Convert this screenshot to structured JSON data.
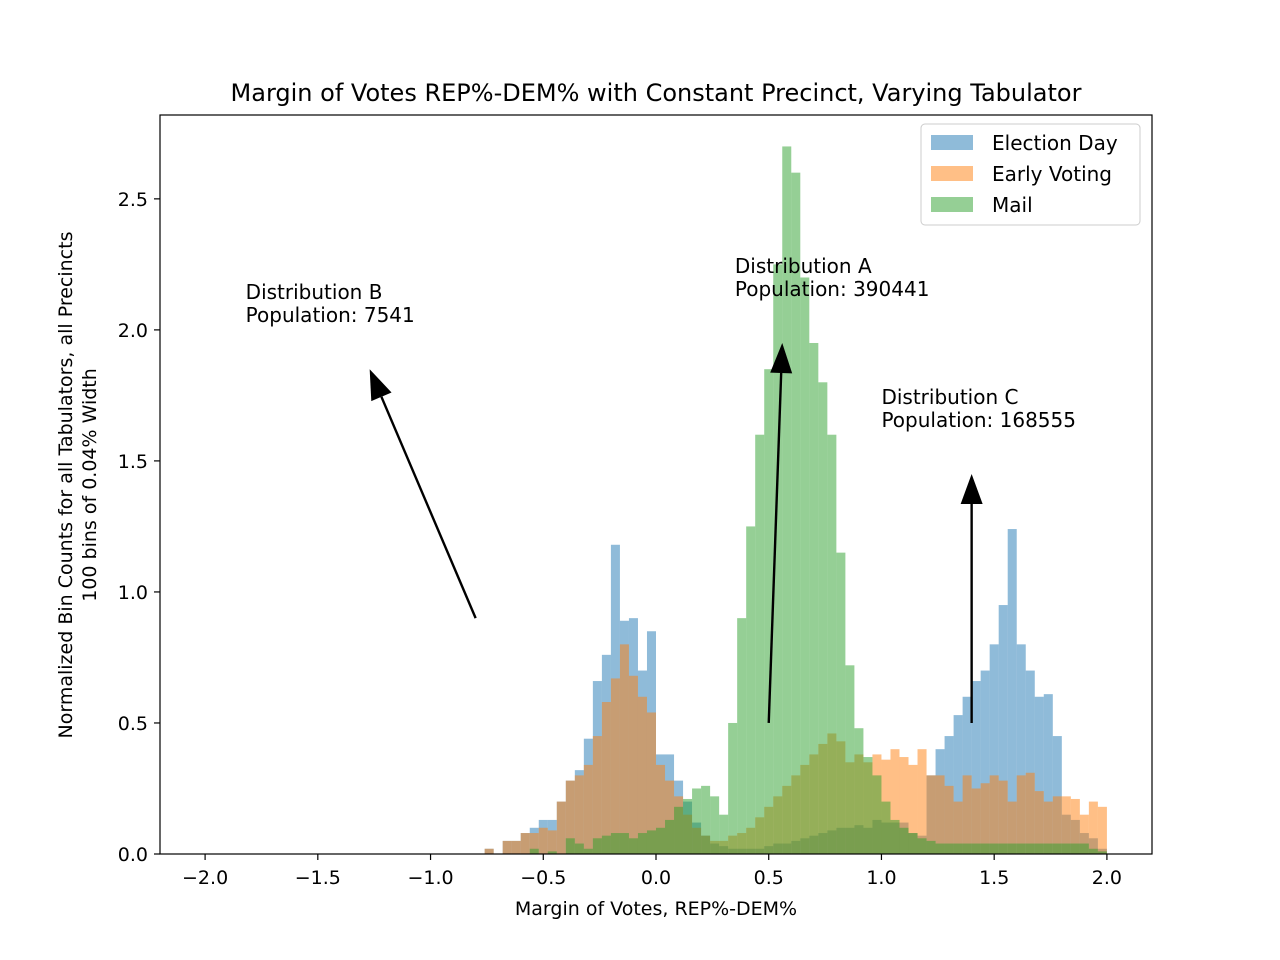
{
  "chart_data": {
    "type": "histogram",
    "title": "Margin of Votes REP%-DEM% with Constant Precinct, Varying Tabulator",
    "xlabel": "Margin of Votes, REP%-DEM%",
    "ylabel_lines": [
      "Normalized Bin Counts for all Tabulators, all Precincts",
      "100 bins of 0.04% Width"
    ],
    "xlim": [
      -2.2,
      2.2
    ],
    "ylim": [
      0,
      2.82
    ],
    "x_ticks": [
      -2.0,
      -1.5,
      -1.0,
      -0.5,
      0.0,
      0.5,
      1.0,
      1.5,
      2.0
    ],
    "x_tick_labels": [
      "−2.0",
      "−1.5",
      "−1.0",
      "−0.5",
      "0.0",
      "0.5",
      "1.0",
      "1.5",
      "2.0"
    ],
    "y_ticks": [
      0.0,
      0.5,
      1.0,
      1.5,
      2.0,
      2.5
    ],
    "y_tick_labels": [
      "0.0",
      "0.5",
      "1.0",
      "1.5",
      "2.0",
      "2.5"
    ],
    "bins": {
      "start": -2.0,
      "width": 0.04,
      "count": 100
    },
    "legend_position": "top-right",
    "series": [
      {
        "name": "Election Day",
        "color": "#1f77b4",
        "alpha": 0.5,
        "values": [
          0,
          0,
          0,
          0,
          0,
          0,
          0,
          0,
          0,
          0,
          0,
          0,
          0,
          0,
          0,
          0,
          0,
          0,
          0,
          0,
          0,
          0,
          0,
          0,
          0,
          0,
          0,
          0,
          0,
          0,
          0,
          0.02,
          0,
          0.05,
          0.05,
          0.08,
          0.1,
          0.13,
          0.13,
          0.2,
          0.28,
          0.32,
          0.44,
          0.66,
          0.76,
          1.18,
          0.89,
          0.9,
          0.7,
          0.85,
          0.38,
          0.38,
          0.28,
          0.2,
          0.12,
          0.07,
          0.04,
          0.03,
          0.02,
          0.02,
          0.02,
          0.02,
          0.03,
          0.04,
          0.04,
          0.05,
          0.06,
          0.07,
          0.08,
          0.09,
          0.1,
          0.1,
          0.11,
          0.1,
          0.13,
          0.12,
          0.12,
          0.12,
          0.08,
          0.07,
          0.3,
          0.4,
          0.45,
          0.53,
          0.6,
          0.66,
          0.7,
          0.8,
          0.95,
          1.24,
          0.8,
          0.7,
          0.6,
          0.61,
          0.45,
          0.15,
          0.13,
          0.08,
          0.06,
          0.02
        ]
      },
      {
        "name": "Early Voting",
        "color": "#ff7f0e",
        "alpha": 0.5,
        "values": [
          0,
          0,
          0,
          0,
          0,
          0,
          0,
          0,
          0,
          0,
          0,
          0,
          0,
          0,
          0,
          0,
          0,
          0,
          0,
          0,
          0,
          0,
          0,
          0,
          0,
          0,
          0,
          0,
          0,
          0,
          0,
          0.02,
          0,
          0.05,
          0.05,
          0.08,
          0.08,
          0.1,
          0.09,
          0.2,
          0.28,
          0.3,
          0.34,
          0.45,
          0.58,
          0.67,
          0.8,
          0.68,
          0.6,
          0.54,
          0.34,
          0.28,
          0.22,
          0.15,
          0.1,
          0.07,
          0.05,
          0.05,
          0.07,
          0.08,
          0.1,
          0.14,
          0.18,
          0.22,
          0.26,
          0.3,
          0.34,
          0.38,
          0.42,
          0.46,
          0.43,
          0.35,
          0.38,
          0.35,
          0.38,
          0.36,
          0.4,
          0.37,
          0.34,
          0.4,
          0.3,
          0.3,
          0.26,
          0.2,
          0.3,
          0.25,
          0.27,
          0.3,
          0.28,
          0.2,
          0.3,
          0.31,
          0.24,
          0.2,
          0.22,
          0.22,
          0.21,
          0.15,
          0.2,
          0.18
        ]
      },
      {
        "name": "Mail",
        "color": "#2ca02c",
        "alpha": 0.5,
        "values": [
          0,
          0,
          0,
          0,
          0,
          0,
          0,
          0,
          0,
          0,
          0,
          0,
          0,
          0,
          0,
          0,
          0,
          0,
          0,
          0,
          0,
          0,
          0,
          0,
          0,
          0,
          0,
          0,
          0,
          0,
          0,
          0,
          0,
          0,
          0,
          0,
          0.02,
          0,
          0.01,
          0,
          0.06,
          0.04,
          0.02,
          0.06,
          0.07,
          0.08,
          0.08,
          0.06,
          0.08,
          0.09,
          0.1,
          0.13,
          0.18,
          0.21,
          0.25,
          0.26,
          0.22,
          0.15,
          0.5,
          0.9,
          1.25,
          1.6,
          1.85,
          2.25,
          2.7,
          2.6,
          2.2,
          1.95,
          1.8,
          1.6,
          1.15,
          0.72,
          0.48,
          0.37,
          0.3,
          0.2,
          0.13,
          0.1,
          0.08,
          0.06,
          0.05,
          0.04,
          0.04,
          0.04,
          0.04,
          0.04,
          0.04,
          0.04,
          0.04,
          0.04,
          0.04,
          0.04,
          0.04,
          0.04,
          0.04,
          0.04,
          0.04,
          0.04,
          0.02,
          0.01
        ]
      }
    ],
    "annotations": [
      {
        "lines": [
          "Distribution B",
          "Population: 7541"
        ],
        "text_at": [
          -1.82,
          2.03
        ],
        "arrow_from": [
          -0.8,
          0.9
        ],
        "arrow_to": [
          -1.27,
          1.85
        ]
      },
      {
        "lines": [
          "Distribution A",
          "Population: 390441"
        ],
        "text_at": [
          0.35,
          2.13
        ],
        "arrow_from": [
          0.5,
          0.5
        ],
        "arrow_to": [
          0.56,
          1.95
        ]
      },
      {
        "lines": [
          "Distribution C",
          "Population: 168555"
        ],
        "text_at": [
          1.0,
          1.63
        ],
        "arrow_from": [
          1.4,
          0.5
        ],
        "arrow_to": [
          1.4,
          1.45
        ]
      }
    ]
  }
}
